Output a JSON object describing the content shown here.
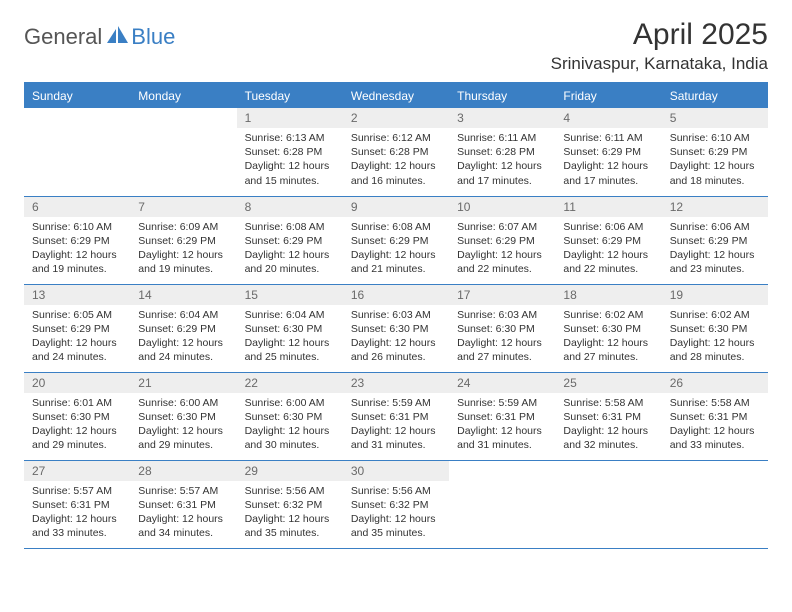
{
  "colors": {
    "brand_blue": "#3a7fc4",
    "header_text": "#ffffff",
    "daynum_bg": "#eeeeee",
    "daynum_text": "#6a6a6a",
    "body_text": "#333333",
    "logo_gray": "#555555",
    "background": "#ffffff"
  },
  "typography": {
    "month_title_size": 30,
    "location_size": 17,
    "logo_size": 22,
    "dayheader_size": 12,
    "daynum_size": 12,
    "daybody_size": 10.5
  },
  "logo": {
    "part1": "General",
    "part2": "Blue"
  },
  "title": "April 2025",
  "location": "Srinivaspur, Karnataka, India",
  "day_headers": [
    "Sunday",
    "Monday",
    "Tuesday",
    "Wednesday",
    "Thursday",
    "Friday",
    "Saturday"
  ],
  "weeks": [
    [
      {
        "n": "",
        "empty": true
      },
      {
        "n": "",
        "empty": true
      },
      {
        "n": "1",
        "sr": "Sunrise: 6:13 AM",
        "ss": "Sunset: 6:28 PM",
        "dl": "Daylight: 12 hours and 15 minutes."
      },
      {
        "n": "2",
        "sr": "Sunrise: 6:12 AM",
        "ss": "Sunset: 6:28 PM",
        "dl": "Daylight: 12 hours and 16 minutes."
      },
      {
        "n": "3",
        "sr": "Sunrise: 6:11 AM",
        "ss": "Sunset: 6:28 PM",
        "dl": "Daylight: 12 hours and 17 minutes."
      },
      {
        "n": "4",
        "sr": "Sunrise: 6:11 AM",
        "ss": "Sunset: 6:29 PM",
        "dl": "Daylight: 12 hours and 17 minutes."
      },
      {
        "n": "5",
        "sr": "Sunrise: 6:10 AM",
        "ss": "Sunset: 6:29 PM",
        "dl": "Daylight: 12 hours and 18 minutes."
      }
    ],
    [
      {
        "n": "6",
        "sr": "Sunrise: 6:10 AM",
        "ss": "Sunset: 6:29 PM",
        "dl": "Daylight: 12 hours and 19 minutes."
      },
      {
        "n": "7",
        "sr": "Sunrise: 6:09 AM",
        "ss": "Sunset: 6:29 PM",
        "dl": "Daylight: 12 hours and 19 minutes."
      },
      {
        "n": "8",
        "sr": "Sunrise: 6:08 AM",
        "ss": "Sunset: 6:29 PM",
        "dl": "Daylight: 12 hours and 20 minutes."
      },
      {
        "n": "9",
        "sr": "Sunrise: 6:08 AM",
        "ss": "Sunset: 6:29 PM",
        "dl": "Daylight: 12 hours and 21 minutes."
      },
      {
        "n": "10",
        "sr": "Sunrise: 6:07 AM",
        "ss": "Sunset: 6:29 PM",
        "dl": "Daylight: 12 hours and 22 minutes."
      },
      {
        "n": "11",
        "sr": "Sunrise: 6:06 AM",
        "ss": "Sunset: 6:29 PM",
        "dl": "Daylight: 12 hours and 22 minutes."
      },
      {
        "n": "12",
        "sr": "Sunrise: 6:06 AM",
        "ss": "Sunset: 6:29 PM",
        "dl": "Daylight: 12 hours and 23 minutes."
      }
    ],
    [
      {
        "n": "13",
        "sr": "Sunrise: 6:05 AM",
        "ss": "Sunset: 6:29 PM",
        "dl": "Daylight: 12 hours and 24 minutes."
      },
      {
        "n": "14",
        "sr": "Sunrise: 6:04 AM",
        "ss": "Sunset: 6:29 PM",
        "dl": "Daylight: 12 hours and 24 minutes."
      },
      {
        "n": "15",
        "sr": "Sunrise: 6:04 AM",
        "ss": "Sunset: 6:30 PM",
        "dl": "Daylight: 12 hours and 25 minutes."
      },
      {
        "n": "16",
        "sr": "Sunrise: 6:03 AM",
        "ss": "Sunset: 6:30 PM",
        "dl": "Daylight: 12 hours and 26 minutes."
      },
      {
        "n": "17",
        "sr": "Sunrise: 6:03 AM",
        "ss": "Sunset: 6:30 PM",
        "dl": "Daylight: 12 hours and 27 minutes."
      },
      {
        "n": "18",
        "sr": "Sunrise: 6:02 AM",
        "ss": "Sunset: 6:30 PM",
        "dl": "Daylight: 12 hours and 27 minutes."
      },
      {
        "n": "19",
        "sr": "Sunrise: 6:02 AM",
        "ss": "Sunset: 6:30 PM",
        "dl": "Daylight: 12 hours and 28 minutes."
      }
    ],
    [
      {
        "n": "20",
        "sr": "Sunrise: 6:01 AM",
        "ss": "Sunset: 6:30 PM",
        "dl": "Daylight: 12 hours and 29 minutes."
      },
      {
        "n": "21",
        "sr": "Sunrise: 6:00 AM",
        "ss": "Sunset: 6:30 PM",
        "dl": "Daylight: 12 hours and 29 minutes."
      },
      {
        "n": "22",
        "sr": "Sunrise: 6:00 AM",
        "ss": "Sunset: 6:30 PM",
        "dl": "Daylight: 12 hours and 30 minutes."
      },
      {
        "n": "23",
        "sr": "Sunrise: 5:59 AM",
        "ss": "Sunset: 6:31 PM",
        "dl": "Daylight: 12 hours and 31 minutes."
      },
      {
        "n": "24",
        "sr": "Sunrise: 5:59 AM",
        "ss": "Sunset: 6:31 PM",
        "dl": "Daylight: 12 hours and 31 minutes."
      },
      {
        "n": "25",
        "sr": "Sunrise: 5:58 AM",
        "ss": "Sunset: 6:31 PM",
        "dl": "Daylight: 12 hours and 32 minutes."
      },
      {
        "n": "26",
        "sr": "Sunrise: 5:58 AM",
        "ss": "Sunset: 6:31 PM",
        "dl": "Daylight: 12 hours and 33 minutes."
      }
    ],
    [
      {
        "n": "27",
        "sr": "Sunrise: 5:57 AM",
        "ss": "Sunset: 6:31 PM",
        "dl": "Daylight: 12 hours and 33 minutes."
      },
      {
        "n": "28",
        "sr": "Sunrise: 5:57 AM",
        "ss": "Sunset: 6:31 PM",
        "dl": "Daylight: 12 hours and 34 minutes."
      },
      {
        "n": "29",
        "sr": "Sunrise: 5:56 AM",
        "ss": "Sunset: 6:32 PM",
        "dl": "Daylight: 12 hours and 35 minutes."
      },
      {
        "n": "30",
        "sr": "Sunrise: 5:56 AM",
        "ss": "Sunset: 6:32 PM",
        "dl": "Daylight: 12 hours and 35 minutes."
      },
      {
        "n": "",
        "empty": true
      },
      {
        "n": "",
        "empty": true
      },
      {
        "n": "",
        "empty": true
      }
    ]
  ]
}
